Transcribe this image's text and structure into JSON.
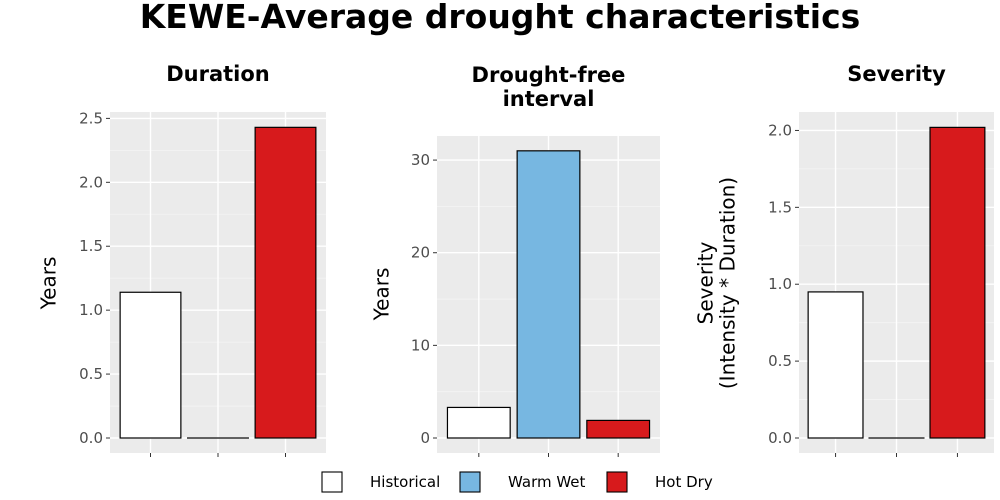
{
  "title": "KEWE-Average drought characteristics",
  "legend": {
    "items": [
      {
        "label": "Historical",
        "color": "#ffffff"
      },
      {
        "label": "Warm Wet",
        "color": "#77b7e1"
      },
      {
        "label": "Hot Dry",
        "color": "#d71a1c"
      }
    ]
  },
  "chart_data": [
    {
      "type": "bar",
      "title": "Duration",
      "ylabel": "Years",
      "categories": [
        "Historical",
        "Warm Wet",
        "Hot Dry"
      ],
      "values": [
        1.14,
        0.0,
        2.43
      ],
      "ylim": [
        0,
        2.55
      ],
      "yticks": [
        0.0,
        0.5,
        1.0,
        1.5,
        2.0,
        2.5
      ],
      "ytick_labels": [
        "0.0",
        "0.5",
        "1.0",
        "1.5",
        "2.0",
        "2.5"
      ],
      "grid": true
    },
    {
      "type": "bar",
      "title": "Drought-free\ninterval",
      "ylabel": "Years",
      "categories": [
        "Historical",
        "Warm Wet",
        "Hot Dry"
      ],
      "values": [
        3.3,
        31.0,
        1.9
      ],
      "ylim": [
        0,
        32.6
      ],
      "yticks": [
        0,
        10,
        20,
        30
      ],
      "ytick_labels": [
        "0",
        "10",
        "20",
        "30"
      ],
      "grid": true
    },
    {
      "type": "bar",
      "title": "Severity",
      "ylabel": "Severity\n(Intensity * Duration)",
      "categories": [
        "Historical",
        "Warm Wet",
        "Hot Dry"
      ],
      "values": [
        0.95,
        0.0,
        2.02
      ],
      "ylim": [
        0,
        2.12
      ],
      "yticks": [
        0.0,
        0.5,
        1.0,
        1.5,
        2.0
      ],
      "ytick_labels": [
        "0.0",
        "0.5",
        "1.0",
        "1.5",
        "2.0"
      ],
      "grid": true
    }
  ]
}
